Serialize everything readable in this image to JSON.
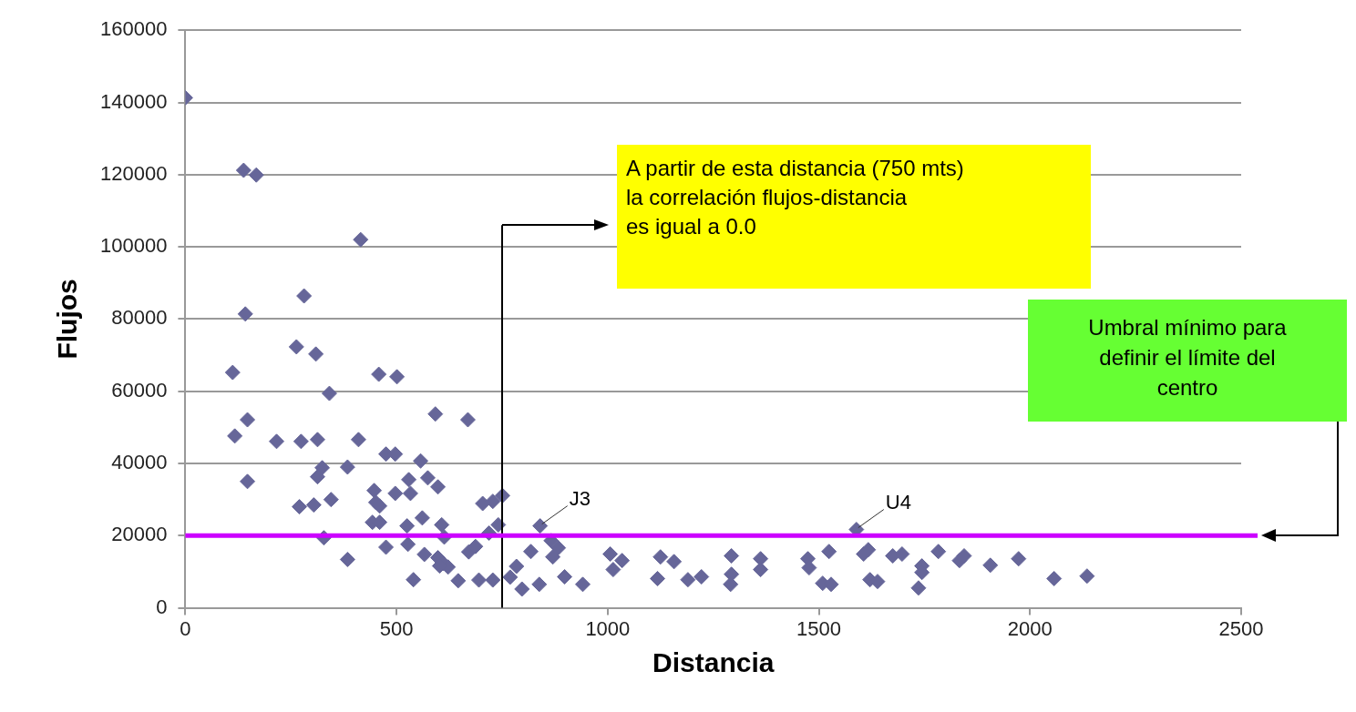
{
  "chart_data": {
    "type": "scatter",
    "xlabel": "Distancia",
    "ylabel": "Flujos",
    "xlim": [
      0,
      2500
    ],
    "xticks": [
      0,
      500,
      1000,
      1500,
      2000,
      2500
    ],
    "ylim": [
      0,
      160000
    ],
    "yticks": [
      0,
      20000,
      40000,
      60000,
      80000,
      100000,
      120000,
      140000,
      160000
    ],
    "grid": "y",
    "legend": false,
    "marker": "diamond",
    "series": [
      {
        "color": "#666699",
        "x": [
          0,
          138,
          168,
          415,
          281,
          142,
          263,
          309,
          112,
          458,
          501,
          341,
          592,
          669,
          147,
          117,
          216,
          274,
          313,
          410,
          475,
          497,
          557,
          147,
          324,
          313,
          384,
          270,
          304,
          345,
          328,
          384,
          447,
          451,
          460,
          497,
          533,
          529,
          574,
          598,
          561,
          443,
          460,
          525,
          607,
          613,
          475,
          527,
          566,
          598,
          611,
          622,
          602,
          646,
          540,
          671,
          687,
          704,
          728,
          751,
          719,
          741,
          695,
          728,
          769,
          784,
          797,
          818,
          840,
          866,
          883,
          870,
          838,
          898,
          941,
          1006,
          1034,
          1013,
          1125,
          1157,
          1118,
          1190,
          1222,
          1293,
          1293,
          1291,
          1362,
          1362,
          1474,
          1477,
          1524,
          1509,
          1529,
          1589,
          1606,
          1617,
          1621,
          1639,
          1675,
          1697,
          1744,
          1744,
          1736,
          1783,
          1833,
          1844,
          1906,
          1973,
          2057,
          2135
        ],
        "values": [
          141300,
          121200,
          119900,
          102000,
          86400,
          81400,
          72300,
          70300,
          65200,
          64700,
          64000,
          59400,
          53700,
          52100,
          52100,
          47600,
          46100,
          46100,
          46600,
          46600,
          42600,
          42600,
          40700,
          35000,
          38800,
          36300,
          39000,
          28000,
          28500,
          30000,
          19400,
          13400,
          32500,
          29200,
          28200,
          31700,
          31700,
          35500,
          36000,
          33500,
          24900,
          23700,
          23700,
          22700,
          23000,
          19600,
          16800,
          17600,
          14800,
          13900,
          12300,
          11300,
          11600,
          7500,
          7800,
          15500,
          17000,
          28900,
          29500,
          31100,
          20700,
          23000,
          7700,
          7700,
          8500,
          11500,
          5200,
          15600,
          22700,
          18600,
          16600,
          14100,
          6500,
          8600,
          6500,
          14900,
          13100,
          10600,
          14100,
          12800,
          8100,
          7800,
          8600,
          14400,
          9300,
          6500,
          13600,
          10600,
          13600,
          11100,
          15600,
          6800,
          6500,
          21700,
          14900,
          16100,
          7800,
          7300,
          14400,
          14900,
          11600,
          9800,
          5500,
          15600,
          13100,
          14400,
          11800,
          13600,
          8100,
          8800
        ]
      }
    ],
    "ref_lines": [
      {
        "axis": "x",
        "value": 750,
        "color": "#000000"
      },
      {
        "axis": "y",
        "value": 20000,
        "color": "#cc00ff"
      }
    ],
    "annotations": [
      "A partir de esta distancia (750 mts)\nla correlación flujos-distancia\nes igual a 0.0",
      "Umbral mínimo para\ndefinir el límite del\ncentro",
      {
        "text": "J3",
        "x": 840,
        "y": 22700
      },
      {
        "text": "U4",
        "x": 1589,
        "y": 21700
      }
    ]
  }
}
